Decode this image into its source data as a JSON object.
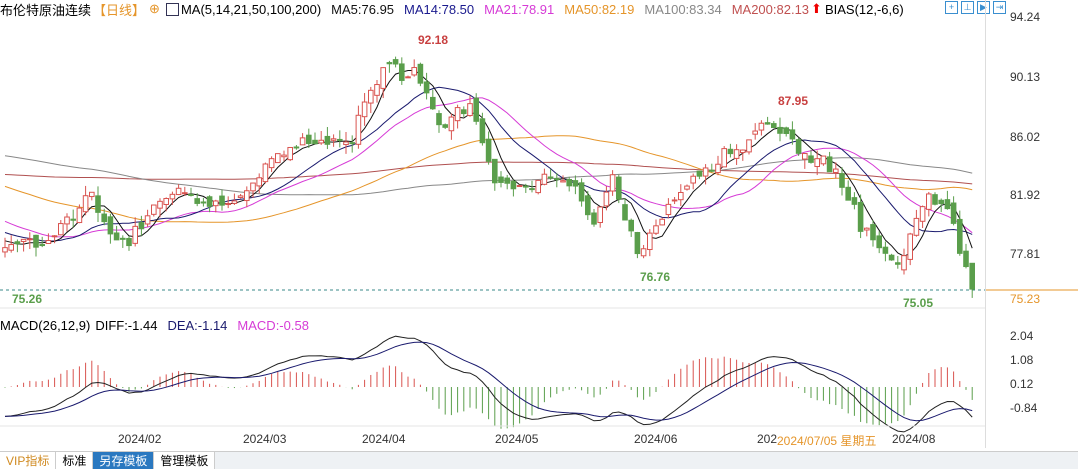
{
  "header": {
    "title": "布伦特原油连续",
    "period": "【日线】",
    "ma_label": "MA(5,14,21,50,100,200)",
    "ma5": "MA5:76.95",
    "ma14": "MA14:78.50",
    "ma21": "MA21:78.91",
    "ma50": "MA50:82.19",
    "ma100": "MA100:83.34",
    "ma200": "MA200:82.13",
    "bias": "BIAS(12,-6,6)"
  },
  "macd_header": {
    "label": "MACD(26,12,9)",
    "diff": "DIFF:-1.44",
    "dea": "DEA:-1.14",
    "macd": "MACD:-0.58"
  },
  "price_axis": [
    "94.24",
    "90.13",
    "86.02",
    "81.92",
    "77.81"
  ],
  "current_price": "75.23",
  "macd_axis": [
    "2.04",
    "1.08",
    "0.12",
    "-0.84"
  ],
  "dates": [
    "2024/02",
    "2024/03",
    "2024/04",
    "2024/05",
    "2024/06",
    "202",
    "2024/08"
  ],
  "tooltip_date": "2024/07/05 星期五",
  "annotations": {
    "high1": "92.18",
    "high2": "87.95",
    "low1": "76.76",
    "low0": "75.26",
    "low2": "75.05"
  },
  "tabs": [
    "VIP指标",
    "标准",
    "另存模板",
    "管理模板"
  ],
  "colors": {
    "up": "#d9534f",
    "down": "#5a9e4b",
    "ma5": "#111111",
    "ma14": "#1a1a6e",
    "ma21": "#d63bd6",
    "ma50": "#e5952a",
    "ma100": "#888888",
    "ma200": "#b05050"
  },
  "chart_data": {
    "type": "candlestick",
    "ylim": [
      74.5,
      95
    ],
    "anchors": [
      [
        0,
        77.5
      ],
      [
        14,
        81.5
      ],
      [
        18,
        78
      ],
      [
        25,
        82
      ],
      [
        33,
        81
      ],
      [
        39,
        82.5
      ],
      [
        48,
        85.5
      ],
      [
        56,
        86
      ],
      [
        61,
        90
      ],
      [
        66,
        91
      ],
      [
        70,
        87
      ],
      [
        75,
        87.5
      ],
      [
        79,
        83
      ],
      [
        90,
        82.8
      ],
      [
        95,
        80.5
      ],
      [
        98,
        83.5
      ],
      [
        102,
        77.5
      ],
      [
        106,
        80
      ],
      [
        111,
        83.5
      ],
      [
        119,
        85
      ],
      [
        124,
        87
      ],
      [
        129,
        85
      ],
      [
        134,
        83
      ],
      [
        138,
        80
      ],
      [
        144,
        77.5
      ],
      [
        149,
        81.5
      ],
      [
        153,
        80
      ],
      [
        156,
        75.5
      ]
    ],
    "history_anchors": [
      [
        0,
        83
      ],
      [
        60,
        80
      ],
      [
        120,
        88
      ],
      [
        170,
        84
      ],
      [
        200,
        78
      ]
    ]
  }
}
